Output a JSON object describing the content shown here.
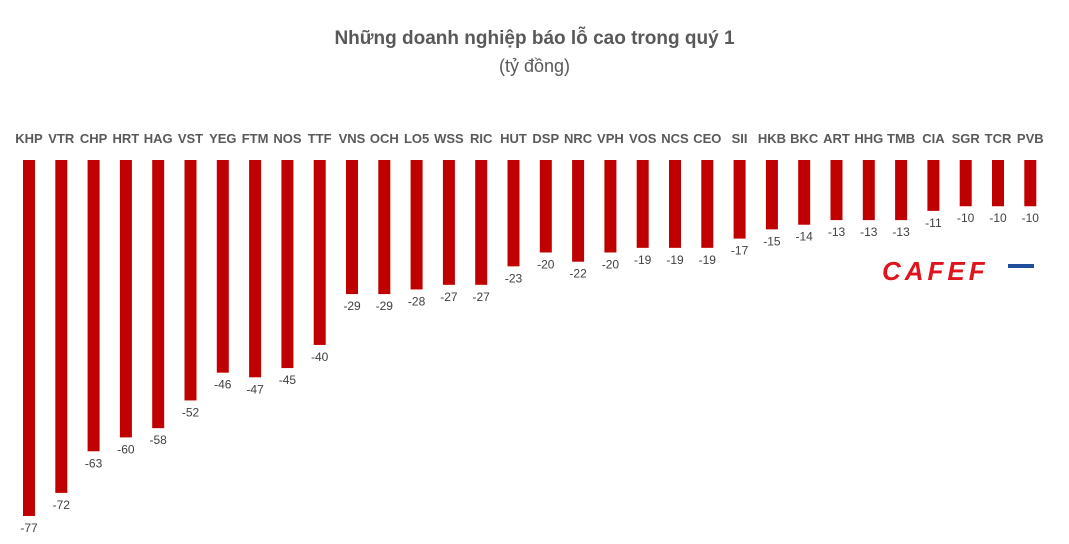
{
  "chart_data": {
    "type": "bar",
    "title": "Những doanh nghiệp báo lỗ cao trong quý 1",
    "subtitle": "(tỷ đồng)",
    "categories": [
      "KHP",
      "VTR",
      "CHP",
      "HRT",
      "HAG",
      "VST",
      "YEG",
      "FTM",
      "NOS",
      "TTF",
      "VNS",
      "OCH",
      "LO5",
      "WSS",
      "RIC",
      "HUT",
      "DSP",
      "NRC",
      "VPH",
      "VOS",
      "NCS",
      "CEO",
      "SII",
      "HKB",
      "BKC",
      "ART",
      "HHG",
      "TMB",
      "CIA",
      "SGR",
      "TCR",
      "PVB"
    ],
    "values": [
      -77,
      -72,
      -63,
      -60,
      -58,
      -52,
      -46,
      -47,
      -45,
      -40,
      -29,
      -29,
      -28,
      -27,
      -27,
      -23,
      -20,
      -22,
      -20,
      -19,
      -19,
      -19,
      -17,
      -15,
      -14,
      -13,
      -13,
      -13,
      -11,
      -10,
      -10,
      -10
    ],
    "ylim": [
      -77,
      0
    ],
    "bar_color": "#c00000",
    "grid": false,
    "legend": "none"
  },
  "watermark": {
    "text": "CAFEF",
    "color": "#e0141e",
    "accent": "#1f4e9b"
  }
}
